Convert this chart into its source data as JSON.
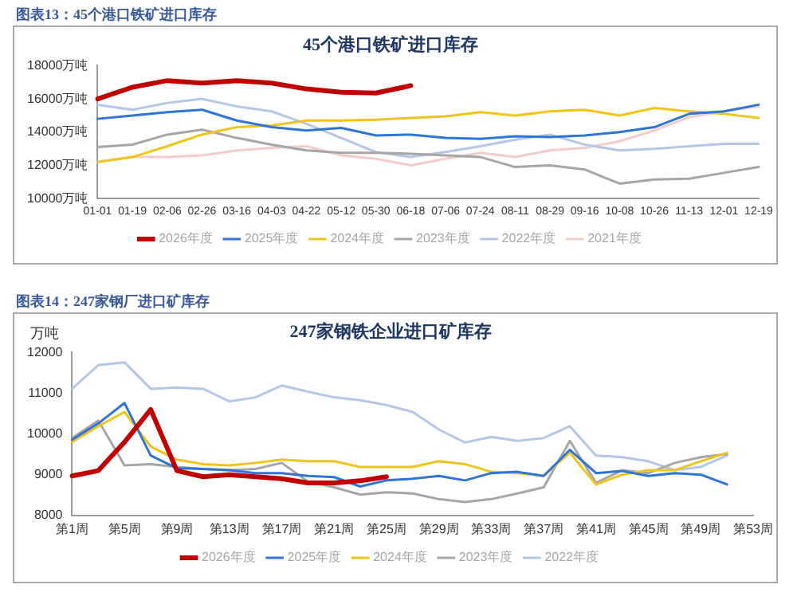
{
  "chart_data": [
    {
      "type": "line",
      "subtitle": "图表13：45个港口铁矿进口库存",
      "title": "45个港口铁矿进口库存",
      "categories": [
        "01-01",
        "01-19",
        "02-06",
        "02-26",
        "03-16",
        "04-03",
        "04-22",
        "05-12",
        "05-30",
        "06-18",
        "07-06",
        "07-24",
        "08-11",
        "08-29",
        "09-16",
        "10-08",
        "10-26",
        "11-13",
        "12-01",
        "12-19"
      ],
      "ylim": [
        10000,
        18000
      ],
      "yticks": [
        {
          "value": 10000,
          "label": "10000万吨"
        },
        {
          "value": 12000,
          "label": "12000万吨"
        },
        {
          "value": 14000,
          "label": "14000万吨"
        },
        {
          "value": 16000,
          "label": "16000万吨"
        },
        {
          "value": 18000,
          "label": "18000万吨"
        }
      ],
      "legend": "bottom",
      "grid": false,
      "marker": "none",
      "line_style": "solid",
      "series": [
        {
          "name": "2026年度",
          "color": "#c00000",
          "values": [
            16000,
            16700,
            17100,
            16950,
            17100,
            16950,
            16600,
            16400,
            16350,
            16800,
            null,
            null,
            null,
            null,
            null,
            null,
            null,
            null,
            null,
            null
          ]
        },
        {
          "name": "2025年度",
          "color": "#2e75d6",
          "values": [
            14800,
            15000,
            15200,
            15350,
            14700,
            14300,
            14100,
            14250,
            13800,
            13850,
            13650,
            13600,
            13750,
            13700,
            13800,
            14000,
            14300,
            15100,
            15250,
            15650
          ]
        },
        {
          "name": "2024年度",
          "color": "#f0c419",
          "values": [
            12200,
            12500,
            13150,
            13850,
            14300,
            14400,
            14700,
            14700,
            14750,
            14850,
            14950,
            15200,
            15000,
            15250,
            15350,
            15000,
            15450,
            15250,
            15100,
            14850
          ]
        },
        {
          "name": "2023年度",
          "color": "#a6a6a6",
          "values": [
            13100,
            13250,
            13850,
            14150,
            13650,
            13250,
            12900,
            12750,
            12750,
            12700,
            12600,
            12500,
            11900,
            12000,
            11750,
            10900,
            11150,
            11200,
            11550,
            11900
          ]
        },
        {
          "name": "2022年度",
          "color": "#b4c7e7",
          "values": [
            15650,
            15350,
            15750,
            16000,
            15550,
            15250,
            14500,
            13650,
            12800,
            12500,
            12800,
            13150,
            13550,
            13850,
            13250,
            12900,
            13000,
            13150,
            13300,
            13300
          ]
        },
        {
          "name": "2021年度",
          "color": "#f4cccc",
          "values": [
            12200,
            12500,
            12500,
            12600,
            12900,
            13050,
            13150,
            12600,
            12400,
            12000,
            12400,
            12750,
            12500,
            12900,
            13050,
            13450,
            14100,
            14900,
            15250,
            15550
          ]
        }
      ]
    },
    {
      "type": "line",
      "subtitle": "图表14：247家钢厂进口矿库存",
      "title": "247家钢铁企业进口矿库存",
      "ylabel": "万吨",
      "categories": [
        "第1周",
        null,
        "第5周",
        null,
        "第9周",
        null,
        "第13周",
        null,
        "第17周",
        null,
        "第21周",
        null,
        "第25周",
        null,
        "第29周",
        null,
        "第33周",
        null,
        "第37周",
        null,
        "第41周",
        null,
        "第45周",
        null,
        "第49周",
        null,
        "第53周"
      ],
      "ylim": [
        8000,
        12000
      ],
      "yticks": [
        8000,
        9000,
        10000,
        11000,
        12000
      ],
      "legend": "bottom",
      "grid": false,
      "marker": "none",
      "line_style": "solid",
      "series": [
        {
          "name": "2026年度",
          "color": "#c00000",
          "values": [
            8970,
            9100,
            9800,
            10600,
            9100,
            8950,
            9000,
            8950,
            8900,
            8800,
            8800,
            8850,
            8950,
            null,
            null,
            null,
            null,
            null,
            null,
            null,
            null,
            null,
            null,
            null,
            null,
            null,
            null
          ]
        },
        {
          "name": "2025年度",
          "color": "#2e75d6",
          "values": [
            9860,
            10260,
            10760,
            9470,
            9160,
            9140,
            9110,
            9040,
            9040,
            8970,
            8940,
            8710,
            8860,
            8900,
            8970,
            8860,
            9040,
            9070,
            8970,
            9610,
            9040,
            9090,
            8970,
            9040,
            9000,
            8760,
            null
          ]
        },
        {
          "name": "2024年度",
          "color": "#f0c419",
          "values": [
            9800,
            10190,
            10540,
            9690,
            9370,
            9260,
            9230,
            9290,
            9370,
            9330,
            9330,
            9190,
            9190,
            9190,
            9330,
            9260,
            9070,
            9040,
            8970,
            9540,
            8760,
            9000,
            9110,
            9110,
            9330,
            9540,
            null
          ]
        },
        {
          "name": "2023年度",
          "color": "#a6a6a6",
          "values": [
            9900,
            10330,
            9230,
            9260,
            9190,
            9140,
            9110,
            9140,
            9290,
            8830,
            8690,
            8510,
            8570,
            8540,
            8400,
            8330,
            8400,
            8540,
            8690,
            9830,
            8800,
            9110,
            9040,
            9290,
            9430,
            9510,
            null
          ]
        },
        {
          "name": "2022年度",
          "color": "#b4c7e7",
          "values": [
            11110,
            11690,
            11760,
            11110,
            11140,
            11110,
            10800,
            10900,
            11190,
            11040,
            10900,
            10830,
            10710,
            10540,
            10110,
            9790,
            9930,
            9830,
            9900,
            10190,
            9470,
            9430,
            9330,
            9110,
            9190,
            9470,
            null
          ]
        }
      ]
    }
  ]
}
